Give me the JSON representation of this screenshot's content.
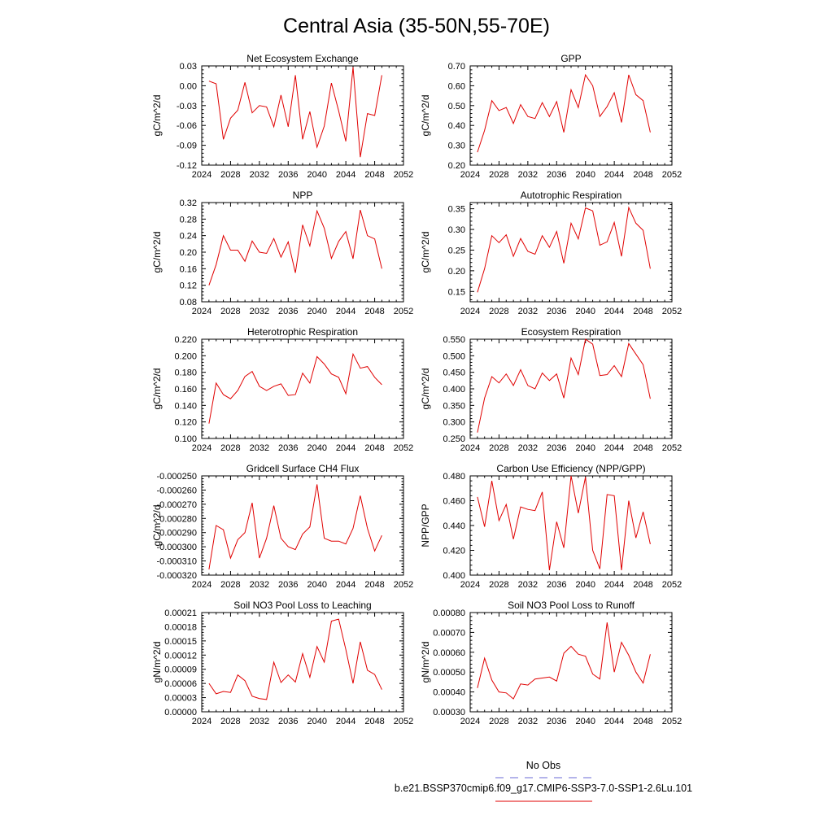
{
  "page_title": "Central Asia (35-50N,55-70E)",
  "legend": {
    "obs_label": "No Obs",
    "model_label": "b.e21.BSSP370cmip6.f09_g17.CMIP6-SSP3-7.0-SSP1-2.6Lu.101",
    "obs_color": "#6a6ad6",
    "model_color": "#e00000"
  },
  "chart_data": [
    {
      "type": "line",
      "title": "Net Ecosystem Exchange",
      "ylabel": "gC/m^2/d",
      "xlim": [
        2024,
        2052
      ],
      "x_ticks": [
        "2024",
        "2028",
        "2032",
        "2036",
        "2040",
        "2044",
        "2048",
        "2052"
      ],
      "ylim": [
        -0.12,
        0.03
      ],
      "y_ticks": [
        "-0.12",
        "-0.09",
        "-0.06",
        "-0.03",
        "0.00",
        "0.03"
      ],
      "series": [
        {
          "color": "#e00000",
          "x": [
            2025,
            2026,
            2027,
            2028,
            2029,
            2030,
            2031,
            2032,
            2033,
            2034,
            2035,
            2036,
            2037,
            2038,
            2039,
            2040,
            2041,
            2042,
            2043,
            2044,
            2045,
            2046,
            2047,
            2048,
            2049
          ],
          "values": [
            0.007,
            0.003,
            -0.081,
            -0.049,
            -0.037,
            0.005,
            -0.041,
            -0.03,
            -0.032,
            -0.062,
            -0.014,
            -0.062,
            0.016,
            -0.081,
            -0.039,
            -0.093,
            -0.061,
            0.004,
            -0.038,
            -0.084,
            0.028,
            -0.108,
            -0.042,
            -0.045,
            0.016
          ]
        }
      ]
    },
    {
      "type": "line",
      "title": "GPP",
      "ylabel": "gC/m^2/d",
      "xlim": [
        2024,
        2052
      ],
      "x_ticks": [
        "2024",
        "2028",
        "2032",
        "2036",
        "2040",
        "2044",
        "2048",
        "2052"
      ],
      "ylim": [
        0.2,
        0.7
      ],
      "y_ticks": [
        "0.20",
        "0.30",
        "0.40",
        "0.50",
        "0.60",
        "0.70"
      ],
      "series": [
        {
          "color": "#e00000",
          "x": [
            2025,
            2026,
            2027,
            2028,
            2029,
            2030,
            2031,
            2032,
            2033,
            2034,
            2035,
            2036,
            2037,
            2038,
            2039,
            2040,
            2041,
            2042,
            2043,
            2044,
            2045,
            2046,
            2047,
            2048,
            2049
          ],
          "values": [
            0.265,
            0.375,
            0.525,
            0.475,
            0.49,
            0.41,
            0.505,
            0.445,
            0.435,
            0.515,
            0.445,
            0.52,
            0.365,
            0.58,
            0.49,
            0.655,
            0.6,
            0.445,
            0.495,
            0.565,
            0.415,
            0.655,
            0.555,
            0.525,
            0.365
          ]
        }
      ]
    },
    {
      "type": "line",
      "title": "NPP",
      "ylabel": "gC/m^2/d",
      "xlim": [
        2024,
        2052
      ],
      "x_ticks": [
        "2024",
        "2028",
        "2032",
        "2036",
        "2040",
        "2044",
        "2048",
        "2052"
      ],
      "ylim": [
        0.08,
        0.32
      ],
      "y_ticks": [
        "0.08",
        "0.12",
        "0.16",
        "0.20",
        "0.24",
        "0.28",
        "0.32"
      ],
      "series": [
        {
          "color": "#e00000",
          "x": [
            2025,
            2026,
            2027,
            2028,
            2029,
            2030,
            2031,
            2032,
            2033,
            2034,
            2035,
            2036,
            2037,
            2038,
            2039,
            2040,
            2041,
            2042,
            2043,
            2044,
            2045,
            2046,
            2047,
            2048,
            2049
          ],
          "values": [
            0.12,
            0.17,
            0.24,
            0.205,
            0.205,
            0.178,
            0.227,
            0.2,
            0.197,
            0.233,
            0.188,
            0.225,
            0.15,
            0.266,
            0.215,
            0.3,
            0.258,
            0.185,
            0.226,
            0.25,
            0.184,
            0.302,
            0.24,
            0.232,
            0.16
          ]
        }
      ]
    },
    {
      "type": "line",
      "title": "Autotrophic Respiration",
      "ylabel": "gC/m^2/d",
      "xlim": [
        2024,
        2052
      ],
      "x_ticks": [
        "2024",
        "2028",
        "2032",
        "2036",
        "2040",
        "2044",
        "2048",
        "2052"
      ],
      "ylim": [
        0.125,
        0.365
      ],
      "y_ticks": [
        "0.15",
        "0.20",
        "0.25",
        "0.30",
        "0.35"
      ],
      "series": [
        {
          "color": "#e00000",
          "x": [
            2025,
            2026,
            2027,
            2028,
            2029,
            2030,
            2031,
            2032,
            2033,
            2034,
            2035,
            2036,
            2037,
            2038,
            2039,
            2040,
            2041,
            2042,
            2043,
            2044,
            2045,
            2046,
            2047,
            2048,
            2049
          ],
          "values": [
            0.148,
            0.205,
            0.285,
            0.268,
            0.287,
            0.235,
            0.278,
            0.247,
            0.24,
            0.285,
            0.257,
            0.295,
            0.218,
            0.315,
            0.277,
            0.352,
            0.345,
            0.262,
            0.27,
            0.317,
            0.235,
            0.353,
            0.315,
            0.298,
            0.205
          ]
        }
      ]
    },
    {
      "type": "line",
      "title": "Heterotrophic Respiration",
      "ylabel": "gC/m^2/d",
      "xlim": [
        2024,
        2052
      ],
      "x_ticks": [
        "2024",
        "2028",
        "2032",
        "2036",
        "2040",
        "2044",
        "2048",
        "2052"
      ],
      "ylim": [
        0.1,
        0.22
      ],
      "y_ticks": [
        "0.100",
        "0.120",
        "0.140",
        "0.160",
        "0.180",
        "0.200",
        "0.220"
      ],
      "series": [
        {
          "color": "#e00000",
          "x": [
            2025,
            2026,
            2027,
            2028,
            2029,
            2030,
            2031,
            2032,
            2033,
            2034,
            2035,
            2036,
            2037,
            2038,
            2039,
            2040,
            2041,
            2042,
            2043,
            2044,
            2045,
            2046,
            2047,
            2048,
            2049
          ],
          "values": [
            0.118,
            0.167,
            0.153,
            0.148,
            0.158,
            0.175,
            0.181,
            0.163,
            0.158,
            0.163,
            0.166,
            0.152,
            0.153,
            0.179,
            0.167,
            0.199,
            0.19,
            0.178,
            0.174,
            0.154,
            0.202,
            0.185,
            0.187,
            0.174,
            0.165
          ]
        }
      ]
    },
    {
      "type": "line",
      "title": "Ecosystem Respiration",
      "ylabel": "gC/m^2/d",
      "xlim": [
        2024,
        2052
      ],
      "x_ticks": [
        "2024",
        "2028",
        "2032",
        "2036",
        "2040",
        "2044",
        "2048",
        "2052"
      ],
      "ylim": [
        0.25,
        0.55
      ],
      "y_ticks": [
        "0.250",
        "0.300",
        "0.350",
        "0.400",
        "0.450",
        "0.500",
        "0.550"
      ],
      "series": [
        {
          "color": "#e00000",
          "x": [
            2025,
            2026,
            2027,
            2028,
            2029,
            2030,
            2031,
            2032,
            2033,
            2034,
            2035,
            2036,
            2037,
            2038,
            2039,
            2040,
            2041,
            2042,
            2043,
            2044,
            2045,
            2046,
            2047,
            2048,
            2049
          ],
          "values": [
            0.268,
            0.372,
            0.437,
            0.418,
            0.445,
            0.41,
            0.458,
            0.41,
            0.4,
            0.448,
            0.425,
            0.445,
            0.372,
            0.493,
            0.443,
            0.55,
            0.535,
            0.44,
            0.443,
            0.47,
            0.437,
            0.537,
            0.505,
            0.473,
            0.37
          ]
        }
      ]
    },
    {
      "type": "line",
      "title": "Gridcell Surface CH4 Flux",
      "ylabel": "gC/m^2/d",
      "xlim": [
        2024,
        2052
      ],
      "x_ticks": [
        "2024",
        "2028",
        "2032",
        "2036",
        "2040",
        "2044",
        "2048",
        "2052"
      ],
      "ylim": [
        -0.00032,
        -0.00025
      ],
      "y_ticks": [
        "-0.000320",
        "-0.000310",
        "-0.000300",
        "-0.000290",
        "-0.000280",
        "-0.000270",
        "-0.000260",
        "-0.000250"
      ],
      "series": [
        {
          "color": "#e00000",
          "x": [
            2025,
            2026,
            2027,
            2028,
            2029,
            2030,
            2031,
            2032,
            2033,
            2034,
            2035,
            2036,
            2037,
            2038,
            2039,
            2040,
            2041,
            2042,
            2043,
            2044,
            2045,
            2046,
            2047,
            2048,
            2049
          ],
          "values": [
            -0.000316,
            -0.000285,
            -0.000288,
            -0.000308,
            -0.000295,
            -0.00029,
            -0.000269,
            -0.000308,
            -0.000294,
            -0.000271,
            -0.000294,
            -0.0003,
            -0.000302,
            -0.000291,
            -0.000286,
            -0.000256,
            -0.000294,
            -0.000296,
            -0.000296,
            -0.000298,
            -0.000287,
            -0.000264,
            -0.000287,
            -0.000303,
            -0.000292
          ]
        }
      ]
    },
    {
      "type": "line",
      "title": "Carbon Use Efficiency (NPP/GPP)",
      "ylabel": "NPP/GPP",
      "xlim": [
        2024,
        2052
      ],
      "x_ticks": [
        "2024",
        "2028",
        "2032",
        "2036",
        "2040",
        "2044",
        "2048",
        "2052"
      ],
      "ylim": [
        0.4,
        0.48
      ],
      "y_ticks": [
        "0.400",
        "0.420",
        "0.440",
        "0.460",
        "0.480"
      ],
      "series": [
        {
          "color": "#e00000",
          "x": [
            2025,
            2026,
            2027,
            2028,
            2029,
            2030,
            2031,
            2032,
            2033,
            2034,
            2035,
            2036,
            2037,
            2038,
            2039,
            2040,
            2041,
            2042,
            2043,
            2044,
            2045,
            2046,
            2047,
            2048,
            2049
          ],
          "values": [
            0.463,
            0.439,
            0.476,
            0.444,
            0.457,
            0.429,
            0.455,
            0.453,
            0.452,
            0.467,
            0.404,
            0.443,
            0.422,
            0.48,
            0.45,
            0.479,
            0.42,
            0.405,
            0.465,
            0.464,
            0.404,
            0.46,
            0.43,
            0.451,
            0.425
          ]
        }
      ]
    },
    {
      "type": "line",
      "title": "Soil NO3 Pool Loss to Leaching",
      "ylabel": "gN/m^2/d",
      "xlim": [
        2024,
        2052
      ],
      "x_ticks": [
        "2024",
        "2028",
        "2032",
        "2036",
        "2040",
        "2044",
        "2048",
        "2052"
      ],
      "ylim": [
        0.0,
        0.00021
      ],
      "y_ticks": [
        "0.00000",
        "0.00003",
        "0.00006",
        "0.00009",
        "0.00012",
        "0.00015",
        "0.00018",
        "0.00021"
      ],
      "series": [
        {
          "color": "#e00000",
          "x": [
            2025,
            2026,
            2027,
            2028,
            2029,
            2030,
            2031,
            2032,
            2033,
            2034,
            2035,
            2036,
            2037,
            2038,
            2039,
            2040,
            2041,
            2042,
            2043,
            2044,
            2045,
            2046,
            2047,
            2048,
            2049
          ],
          "values": [
            6e-05,
            3.8e-05,
            4.3e-05,
            4.1e-05,
            7.8e-05,
            6.6e-05,
            3.3e-05,
            2.8e-05,
            2.6e-05,
            0.000105,
            6.2e-05,
            7.8e-05,
            6.3e-05,
            0.000123,
            7.3e-05,
            0.000138,
            0.000105,
            0.000192,
            0.000196,
            0.000132,
            6e-05,
            0.000148,
            8.8e-05,
            7.9e-05,
            4.7e-05
          ]
        }
      ]
    },
    {
      "type": "line",
      "title": "Soil NO3 Pool Loss to Runoff",
      "ylabel": "gN/m^2/d",
      "xlim": [
        2024,
        2052
      ],
      "x_ticks": [
        "2024",
        "2028",
        "2032",
        "2036",
        "2040",
        "2044",
        "2048",
        "2052"
      ],
      "ylim": [
        0.0003,
        0.0008
      ],
      "y_ticks": [
        "0.00030",
        "0.00040",
        "0.00050",
        "0.00060",
        "0.00070",
        "0.00080"
      ],
      "series": [
        {
          "color": "#e00000",
          "x": [
            2025,
            2026,
            2027,
            2028,
            2029,
            2030,
            2031,
            2032,
            2033,
            2034,
            2035,
            2036,
            2037,
            2038,
            2039,
            2040,
            2041,
            2042,
            2043,
            2044,
            2045,
            2046,
            2047,
            2048,
            2049
          ],
          "values": [
            0.00042,
            0.00057,
            0.00046,
            0.0004,
            0.000395,
            0.000365,
            0.00044,
            0.000435,
            0.000465,
            0.00047,
            0.000475,
            0.000455,
            0.000595,
            0.00063,
            0.00059,
            0.00058,
            0.00049,
            0.000465,
            0.00075,
            0.0005,
            0.00065,
            0.000585,
            0.0005,
            0.000445,
            0.00059
          ]
        }
      ]
    }
  ]
}
